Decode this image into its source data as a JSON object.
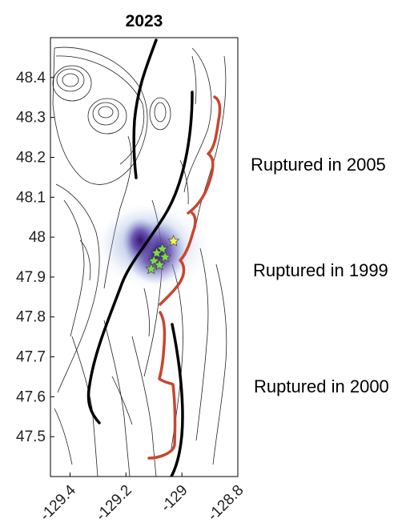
{
  "title": "2023",
  "x_ticks": [
    "-129.4",
    "-129.2",
    "-129",
    "-128.8"
  ],
  "y_ticks": [
    "48.4",
    "48.3",
    "48.2",
    "48.1",
    "48",
    "47.9",
    "47.8",
    "47.7",
    "47.6",
    "47.5"
  ],
  "map_extent": {
    "lon_range": [
      -129.47,
      -128.8
    ],
    "lat_range": [
      47.4,
      48.5
    ]
  },
  "ruptures": [
    {
      "label": "Ruptured in 2005",
      "lat_range": [
        47.98,
        48.36
      ]
    },
    {
      "label": "Ruptured in 1999",
      "lat_range": [
        47.83,
        48.06
      ]
    },
    {
      "label": "Ruptured in 2000",
      "lat_range": [
        47.45,
        47.83
      ]
    }
  ],
  "colors": {
    "fault": "#000000",
    "rupture_bracket": "#c9452f",
    "contour": "#222222",
    "seismicity_dense": "#3b1a7a",
    "seismicity_light": "#9fb4d6",
    "epicenter_star_yellow": "#f7f24a",
    "epicenter_star_green": "#7fd94e"
  },
  "epicenters": {
    "yellow": [
      [
        -129.03,
        47.99
      ]
    ],
    "green": [
      [
        -129.07,
        47.97
      ],
      [
        -129.09,
        47.96
      ],
      [
        -129.06,
        47.95
      ],
      [
        -129.1,
        47.94
      ],
      [
        -129.08,
        47.93
      ],
      [
        -129.11,
        47.92
      ]
    ]
  }
}
